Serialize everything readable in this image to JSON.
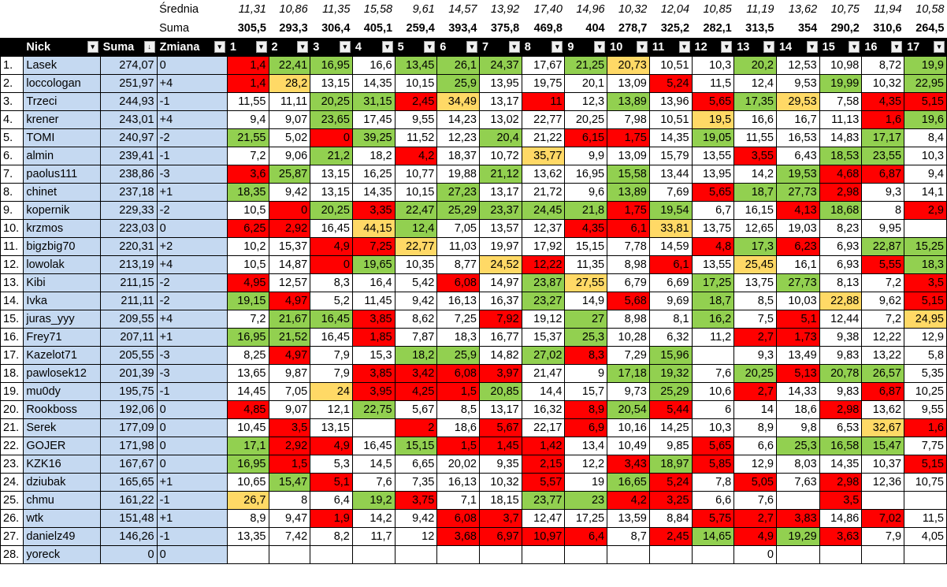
{
  "avg_label": "Średnia",
  "sum_label": "Suma",
  "averages": [
    "11,31",
    "10,86",
    "11,35",
    "15,58",
    "9,61",
    "14,57",
    "13,92",
    "17,40",
    "14,96",
    "10,32",
    "12,04",
    "10,85",
    "11,19",
    "13,62",
    "10,75",
    "11,94",
    "10,58"
  ],
  "sums": [
    "305,5",
    "293,3",
    "306,4",
    "405,1",
    "259,4",
    "393,4",
    "375,8",
    "469,8",
    "404",
    "278,7",
    "325,2",
    "282,1",
    "313,5",
    "354",
    "290,2",
    "310,6",
    "264,5"
  ],
  "headers": {
    "nick": "Nick",
    "suma": "Suma",
    "zmiana": "Zmiana",
    "rounds": [
      "1",
      "2",
      "3",
      "4",
      "5",
      "6",
      "7",
      "8",
      "9",
      "10",
      "11",
      "12",
      "13",
      "14",
      "15",
      "16",
      "17"
    ]
  },
  "filter_icon": "dropdown-arrow-icon",
  "sort_icon": "sort-descending-icon",
  "colors": {
    "green": "#92d050",
    "red": "#ff0000",
    "yellow": "#ffd966",
    "name_bg": "#c5d9f1",
    "header_bg": "#000000"
  },
  "legend": {
    "g": "green",
    "r": "red",
    "y": "yellow",
    "w": "none"
  },
  "rows": [
    {
      "rank": "1.",
      "nick": "Lasek",
      "suma": "274,07",
      "zmiana": "0",
      "vals": [
        "1,4",
        "22,41",
        "16,95",
        "16,6",
        "13,45",
        "26,1",
        "24,37",
        "17,67",
        "21,25",
        "20,73",
        "10,51",
        "10,3",
        "20,2",
        "12,53",
        "10,98",
        "8,72",
        "19,9"
      ],
      "colors": [
        "r",
        "g",
        "g",
        "w",
        "g",
        "g",
        "g",
        "w",
        "g",
        "y",
        "w",
        "w",
        "g",
        "w",
        "w",
        "w",
        "g"
      ]
    },
    {
      "rank": "2.",
      "nick": "loccologan",
      "suma": "251,97",
      "zmiana": "+4",
      "vals": [
        "1,4",
        "28,2",
        "13,15",
        "14,35",
        "10,15",
        "25,9",
        "13,95",
        "19,75",
        "20,1",
        "13,09",
        "5,24",
        "11,5",
        "12,4",
        "9,53",
        "19,99",
        "10,32",
        "22,95"
      ],
      "colors": [
        "r",
        "y",
        "w",
        "w",
        "w",
        "g",
        "w",
        "w",
        "w",
        "w",
        "r",
        "w",
        "w",
        "w",
        "g",
        "w",
        "g"
      ]
    },
    {
      "rank": "3.",
      "nick": "Trzeci",
      "suma": "244,93",
      "zmiana": "-1",
      "vals": [
        "11,55",
        "11,11",
        "20,25",
        "31,15",
        "2,45",
        "34,49",
        "13,17",
        "11",
        "12,3",
        "13,89",
        "13,96",
        "5,65",
        "17,35",
        "29,53",
        "7,58",
        "4,35",
        "5,15"
      ],
      "colors": [
        "w",
        "w",
        "g",
        "g",
        "r",
        "y",
        "w",
        "r",
        "w",
        "g",
        "w",
        "r",
        "g",
        "y",
        "w",
        "r",
        "r"
      ]
    },
    {
      "rank": "4.",
      "nick": "krener",
      "suma": "243,01",
      "zmiana": "+4",
      "vals": [
        "9,4",
        "9,07",
        "23,65",
        "17,45",
        "9,55",
        "14,23",
        "13,02",
        "22,77",
        "20,25",
        "7,98",
        "10,51",
        "19,5",
        "16,6",
        "16,7",
        "11,13",
        "1,6",
        "19,6"
      ],
      "colors": [
        "w",
        "w",
        "g",
        "w",
        "w",
        "w",
        "w",
        "w",
        "w",
        "w",
        "w",
        "y",
        "w",
        "w",
        "w",
        "r",
        "g"
      ]
    },
    {
      "rank": "5.",
      "nick": "TOMI",
      "suma": "240,97",
      "zmiana": "-2",
      "vals": [
        "21,55",
        "5,02",
        "0",
        "39,25",
        "11,52",
        "12,23",
        "20,4",
        "21,22",
        "6,15",
        "1,75",
        "14,35",
        "19,05",
        "11,55",
        "16,53",
        "14,83",
        "17,17",
        "8,4"
      ],
      "colors": [
        "g",
        "w",
        "r",
        "g",
        "w",
        "w",
        "g",
        "w",
        "r",
        "r",
        "w",
        "g",
        "w",
        "w",
        "w",
        "g",
        "w"
      ]
    },
    {
      "rank": "6.",
      "nick": "almin",
      "suma": "239,41",
      "zmiana": "-1",
      "vals": [
        "7,2",
        "9,06",
        "21,2",
        "18,2",
        "4,2",
        "18,37",
        "10,72",
        "35,77",
        "9,9",
        "13,09",
        "15,79",
        "13,55",
        "3,55",
        "6,43",
        "18,53",
        "23,55",
        "10,3"
      ],
      "colors": [
        "w",
        "w",
        "g",
        "w",
        "r",
        "w",
        "w",
        "y",
        "w",
        "w",
        "w",
        "w",
        "r",
        "w",
        "g",
        "g",
        "w"
      ]
    },
    {
      "rank": "7.",
      "nick": "paolus111",
      "suma": "238,86",
      "zmiana": "-3",
      "vals": [
        "3,6",
        "25,87",
        "13,15",
        "16,25",
        "10,77",
        "19,88",
        "21,12",
        "13,62",
        "16,95",
        "15,58",
        "13,44",
        "13,95",
        "14,2",
        "19,53",
        "4,68",
        "6,87",
        "9,4"
      ],
      "colors": [
        "r",
        "g",
        "w",
        "w",
        "w",
        "w",
        "g",
        "w",
        "w",
        "g",
        "w",
        "w",
        "w",
        "g",
        "r",
        "r",
        "w"
      ]
    },
    {
      "rank": "8.",
      "nick": "chinet",
      "suma": "237,18",
      "zmiana": "+1",
      "vals": [
        "18,35",
        "9,42",
        "13,15",
        "14,35",
        "10,15",
        "27,23",
        "13,17",
        "21,72",
        "9,6",
        "13,89",
        "7,69",
        "5,65",
        "18,7",
        "27,73",
        "2,98",
        "9,3",
        "14,1"
      ],
      "colors": [
        "g",
        "w",
        "w",
        "w",
        "w",
        "g",
        "w",
        "w",
        "w",
        "g",
        "w",
        "r",
        "g",
        "g",
        "r",
        "w",
        "w"
      ]
    },
    {
      "rank": "9.",
      "nick": "kopernik",
      "suma": "229,33",
      "zmiana": "-2",
      "vals": [
        "10,5",
        "0",
        "20,25",
        "3,35",
        "22,47",
        "25,29",
        "23,37",
        "24,45",
        "21,8",
        "1,75",
        "19,54",
        "6,7",
        "16,15",
        "4,13",
        "18,68",
        "8",
        "2,9"
      ],
      "colors": [
        "w",
        "r",
        "g",
        "r",
        "g",
        "g",
        "g",
        "g",
        "g",
        "r",
        "g",
        "w",
        "w",
        "r",
        "g",
        "w",
        "r"
      ]
    },
    {
      "rank": "10.",
      "nick": "krzmos",
      "suma": "223,03",
      "zmiana": "0",
      "vals": [
        "6,25",
        "2,92",
        "16,45",
        "44,15",
        "12,4",
        "7,05",
        "13,57",
        "12,37",
        "4,35",
        "6,1",
        "33,81",
        "13,75",
        "12,65",
        "19,03",
        "8,23",
        "9,95",
        ""
      ],
      "colors": [
        "r",
        "r",
        "w",
        "y",
        "g",
        "w",
        "w",
        "w",
        "r",
        "r",
        "y",
        "w",
        "w",
        "w",
        "w",
        "w",
        "w"
      ]
    },
    {
      "rank": "11.",
      "nick": "bigzbig70",
      "suma": "220,31",
      "zmiana": "+2",
      "vals": [
        "10,2",
        "15,37",
        "4,9",
        "7,25",
        "22,77",
        "11,03",
        "19,97",
        "17,92",
        "15,15",
        "7,78",
        "14,59",
        "4,8",
        "17,3",
        "6,23",
        "6,93",
        "22,87",
        "15,25"
      ],
      "colors": [
        "w",
        "w",
        "r",
        "r",
        "y",
        "w",
        "w",
        "w",
        "w",
        "w",
        "w",
        "r",
        "g",
        "r",
        "w",
        "g",
        "g"
      ]
    },
    {
      "rank": "12.",
      "nick": "lowolak",
      "suma": "213,19",
      "zmiana": "+4",
      "vals": [
        "10,5",
        "14,87",
        "0",
        "19,65",
        "10,35",
        "8,77",
        "24,52",
        "12,22",
        "11,35",
        "8,98",
        "6,1",
        "13,55",
        "25,45",
        "16,1",
        "6,93",
        "5,55",
        "18,3"
      ],
      "colors": [
        "w",
        "w",
        "r",
        "g",
        "w",
        "w",
        "y",
        "r",
        "w",
        "w",
        "r",
        "w",
        "y",
        "w",
        "w",
        "r",
        "g"
      ]
    },
    {
      "rank": "13.",
      "nick": "Kibi",
      "suma": "211,15",
      "zmiana": "-2",
      "vals": [
        "4,95",
        "12,57",
        "8,3",
        "16,4",
        "5,42",
        "6,08",
        "14,97",
        "23,87",
        "27,55",
        "6,79",
        "6,69",
        "17,25",
        "13,75",
        "27,73",
        "8,13",
        "7,2",
        "3,5"
      ],
      "colors": [
        "r",
        "w",
        "w",
        "w",
        "w",
        "r",
        "w",
        "g",
        "y",
        "w",
        "w",
        "g",
        "w",
        "g",
        "w",
        "w",
        "r"
      ]
    },
    {
      "rank": "14.",
      "nick": "Ivka",
      "suma": "211,11",
      "zmiana": "-2",
      "vals": [
        "19,15",
        "4,97",
        "5,2",
        "11,45",
        "9,42",
        "16,13",
        "16,37",
        "23,27",
        "14,9",
        "5,68",
        "9,69",
        "18,7",
        "8,5",
        "10,03",
        "22,88",
        "9,62",
        "5,15"
      ],
      "colors": [
        "g",
        "r",
        "w",
        "w",
        "w",
        "w",
        "w",
        "g",
        "w",
        "r",
        "w",
        "g",
        "w",
        "w",
        "y",
        "w",
        "r"
      ]
    },
    {
      "rank": "15.",
      "nick": "juras_yyy",
      "suma": "209,55",
      "zmiana": "+4",
      "vals": [
        "7,2",
        "21,67",
        "16,45",
        "3,85",
        "8,62",
        "7,25",
        "7,92",
        "19,12",
        "27",
        "8,98",
        "8,1",
        "16,2",
        "7,5",
        "5,1",
        "12,44",
        "7,2",
        "24,95"
      ],
      "colors": [
        "w",
        "g",
        "g",
        "r",
        "w",
        "w",
        "r",
        "w",
        "g",
        "w",
        "w",
        "g",
        "w",
        "r",
        "w",
        "w",
        "y"
      ]
    },
    {
      "rank": "16.",
      "nick": "Frey71",
      "suma": "207,11",
      "zmiana": "+1",
      "vals": [
        "16,95",
        "21,52",
        "16,45",
        "1,85",
        "7,87",
        "18,3",
        "16,77",
        "15,37",
        "25,3",
        "10,28",
        "6,32",
        "11,2",
        "2,7",
        "1,73",
        "9,38",
        "12,22",
        "12,9"
      ],
      "colors": [
        "g",
        "g",
        "w",
        "r",
        "w",
        "w",
        "w",
        "w",
        "g",
        "w",
        "w",
        "w",
        "r",
        "r",
        "w",
        "w",
        "w"
      ]
    },
    {
      "rank": "17.",
      "nick": "Kazelot71",
      "suma": "205,55",
      "zmiana": "-3",
      "vals": [
        "8,25",
        "4,97",
        "7,9",
        "15,3",
        "18,2",
        "25,9",
        "14,82",
        "27,02",
        "8,3",
        "7,29",
        "15,96",
        "",
        "9,3",
        "13,49",
        "9,83",
        "13,22",
        "5,8"
      ],
      "colors": [
        "w",
        "r",
        "w",
        "w",
        "g",
        "g",
        "w",
        "g",
        "r",
        "w",
        "g",
        "w",
        "w",
        "w",
        "w",
        "w",
        "w"
      ]
    },
    {
      "rank": "18.",
      "nick": "pawlosek12",
      "suma": "201,39",
      "zmiana": "-3",
      "vals": [
        "13,65",
        "9,87",
        "7,9",
        "3,85",
        "3,42",
        "6,08",
        "3,97",
        "21,47",
        "9",
        "17,18",
        "19,32",
        "7,6",
        "20,25",
        "5,13",
        "20,78",
        "26,57",
        "5,35"
      ],
      "colors": [
        "w",
        "w",
        "w",
        "r",
        "r",
        "r",
        "r",
        "w",
        "w",
        "g",
        "g",
        "w",
        "g",
        "r",
        "g",
        "g",
        "w"
      ]
    },
    {
      "rank": "19.",
      "nick": "mu0dy",
      "suma": "195,75",
      "zmiana": "-1",
      "vals": [
        "14,45",
        "7,05",
        "24",
        "3,95",
        "4,25",
        "1,5",
        "20,85",
        "14,4",
        "15,7",
        "9,73",
        "25,29",
        "10,6",
        "2,7",
        "14,33",
        "9,83",
        "6,87",
        "10,25"
      ],
      "colors": [
        "w",
        "w",
        "y",
        "r",
        "r",
        "r",
        "g",
        "w",
        "w",
        "w",
        "g",
        "w",
        "r",
        "w",
        "w",
        "r",
        "w"
      ]
    },
    {
      "rank": "20.",
      "nick": "Rookboss",
      "suma": "192,06",
      "zmiana": "0",
      "vals": [
        "4,85",
        "9,07",
        "12,1",
        "22,75",
        "5,67",
        "8,5",
        "13,17",
        "16,32",
        "8,9",
        "20,54",
        "5,44",
        "6",
        "14",
        "18,6",
        "2,98",
        "13,62",
        "9,55"
      ],
      "colors": [
        "r",
        "w",
        "w",
        "g",
        "w",
        "w",
        "w",
        "w",
        "r",
        "g",
        "r",
        "w",
        "w",
        "w",
        "r",
        "w",
        "w"
      ]
    },
    {
      "rank": "21.",
      "nick": "Serek",
      "suma": "177,09",
      "zmiana": "0",
      "vals": [
        "10,45",
        "3,5",
        "13,15",
        "",
        "2",
        "18,6",
        "5,67",
        "22,17",
        "6,9",
        "10,16",
        "14,25",
        "10,3",
        "8,9",
        "9,8",
        "6,53",
        "32,67",
        "1,6"
      ],
      "colors": [
        "w",
        "r",
        "w",
        "w",
        "r",
        "w",
        "r",
        "w",
        "r",
        "w",
        "w",
        "w",
        "w",
        "w",
        "w",
        "y",
        "r"
      ]
    },
    {
      "rank": "22.",
      "nick": "GOJER",
      "suma": "171,98",
      "zmiana": "0",
      "vals": [
        "17,1",
        "2,92",
        "4,9",
        "16,45",
        "15,15",
        "1,5",
        "1,45",
        "1,42",
        "13,4",
        "10,49",
        "9,85",
        "5,65",
        "6,6",
        "25,3",
        "16,58",
        "15,47",
        "7,75"
      ],
      "colors": [
        "g",
        "r",
        "r",
        "w",
        "g",
        "r",
        "r",
        "r",
        "w",
        "w",
        "w",
        "r",
        "w",
        "g",
        "g",
        "g",
        "w"
      ]
    },
    {
      "rank": "23.",
      "nick": "KZK16",
      "suma": "167,67",
      "zmiana": "0",
      "vals": [
        "16,95",
        "1,5",
        "5,3",
        "14,5",
        "6,65",
        "20,02",
        "9,35",
        "2,15",
        "12,2",
        "3,43",
        "18,97",
        "5,85",
        "12,9",
        "8,03",
        "14,35",
        "10,37",
        "5,15"
      ],
      "colors": [
        "g",
        "r",
        "w",
        "w",
        "w",
        "w",
        "w",
        "r",
        "w",
        "r",
        "g",
        "r",
        "w",
        "w",
        "w",
        "w",
        "r"
      ]
    },
    {
      "rank": "24.",
      "nick": "dziubak",
      "suma": "165,65",
      "zmiana": "+1",
      "vals": [
        "10,65",
        "15,47",
        "5,1",
        "7,6",
        "7,35",
        "16,13",
        "10,32",
        "5,57",
        "19",
        "16,65",
        "5,24",
        "7,8",
        "5,05",
        "7,63",
        "2,98",
        "12,36",
        "10,75"
      ],
      "colors": [
        "w",
        "g",
        "r",
        "w",
        "w",
        "w",
        "w",
        "r",
        "w",
        "g",
        "r",
        "w",
        "r",
        "w",
        "r",
        "w",
        "w"
      ]
    },
    {
      "rank": "25.",
      "nick": "chmu",
      "suma": "161,22",
      "zmiana": "-1",
      "vals": [
        "26,7",
        "8",
        "6,4",
        "19,2",
        "3,75",
        "7,1",
        "18,15",
        "23,77",
        "23",
        "4,2",
        "3,25",
        "6,6",
        "7,6",
        "",
        "3,5",
        "",
        ""
      ],
      "colors": [
        "y",
        "w",
        "w",
        "g",
        "r",
        "w",
        "w",
        "g",
        "g",
        "r",
        "r",
        "w",
        "w",
        "w",
        "r",
        "w",
        "w"
      ]
    },
    {
      "rank": "26.",
      "nick": "wtk",
      "suma": "151,48",
      "zmiana": "+1",
      "vals": [
        "8,9",
        "9,47",
        "1,9",
        "14,2",
        "9,42",
        "6,08",
        "3,7",
        "12,47",
        "17,25",
        "13,59",
        "8,84",
        "5,75",
        "2,7",
        "3,83",
        "14,86",
        "7,02",
        "11,5"
      ],
      "colors": [
        "w",
        "w",
        "r",
        "w",
        "w",
        "r",
        "r",
        "w",
        "w",
        "w",
        "w",
        "r",
        "r",
        "r",
        "w",
        "r",
        "w"
      ]
    },
    {
      "rank": "27.",
      "nick": "danielz49",
      "suma": "146,26",
      "zmiana": "-1",
      "vals": [
        "13,35",
        "7,42",
        "8,2",
        "11,7",
        "12",
        "3,68",
        "6,97",
        "10,97",
        "6,4",
        "8,7",
        "2,45",
        "14,65",
        "4,9",
        "19,29",
        "3,63",
        "7,9",
        "4,05"
      ],
      "colors": [
        "w",
        "w",
        "w",
        "w",
        "w",
        "r",
        "r",
        "r",
        "r",
        "w",
        "r",
        "g",
        "r",
        "g",
        "r",
        "w",
        "w"
      ]
    },
    {
      "rank": "28.",
      "nick": "yoreck",
      "suma": "0",
      "zmiana": "0",
      "vals": [
        "",
        "",
        "",
        "",
        "",
        "",
        "",
        "",
        "",
        "",
        "",
        "",
        "0",
        "",
        "",
        "",
        ""
      ],
      "colors": [
        "w",
        "w",
        "w",
        "w",
        "w",
        "w",
        "w",
        "w",
        "w",
        "w",
        "w",
        "w",
        "w",
        "w",
        "w",
        "w",
        "w"
      ]
    }
  ]
}
